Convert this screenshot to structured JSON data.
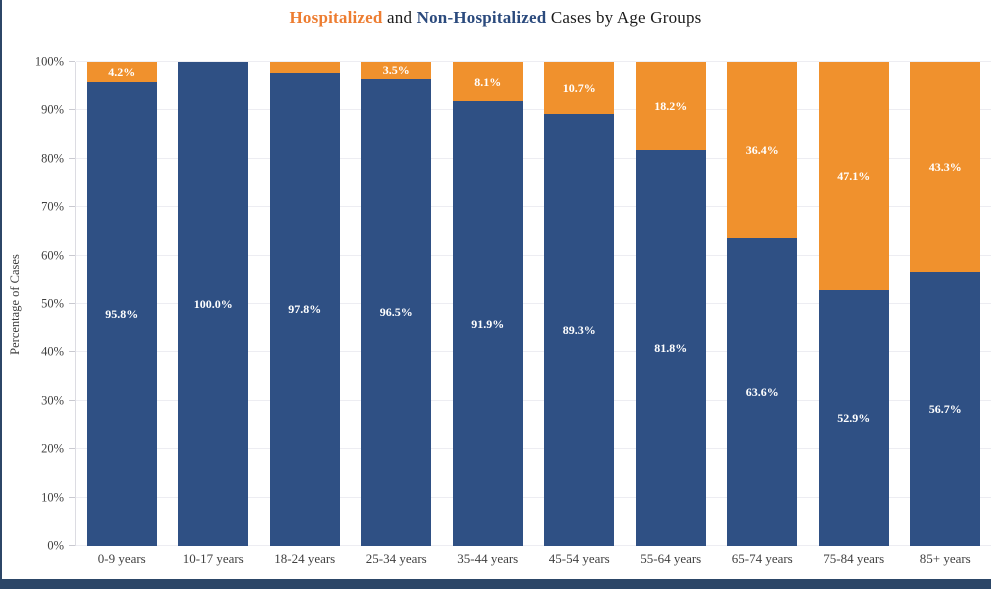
{
  "title": {
    "hospitalized": "Hospitalized",
    "and": " and ",
    "non_hospitalized": "Non-Hospitalized",
    "suffix": " Cases by Age Groups"
  },
  "colors": {
    "hospitalized": "#F0912D",
    "non_hospitalized": "#2F5084",
    "title_hospitalized": "#ED7D31",
    "title_non_hospitalized": "#2B4A7D",
    "grid": "#EDEDF2",
    "axis_line": "#DCDCE2",
    "tick_mark": "#C9C9D0",
    "tick_text": "#404040",
    "frame": "#2C4667",
    "value_label_text": "#FFFFFF"
  },
  "chart_data": {
    "type": "bar",
    "stacked": true,
    "title": "Hospitalized and Non-Hospitalized Cases by Age Groups",
    "xlabel": "",
    "ylabel": "Percentage of Cases",
    "ylim": [
      0,
      100
    ],
    "grid": true,
    "legend_position": "none (color-coded words in title act as legend)",
    "categories": [
      "0-9 years",
      "10-17 years",
      "18-24 years",
      "25-34 years",
      "35-44 years",
      "45-54 years",
      "55-64 years",
      "65-74 years",
      "75-84 years",
      "85+ years"
    ],
    "yticks": [
      "0%",
      "10%",
      "20%",
      "30%",
      "40%",
      "50%",
      "60%",
      "70%",
      "80%",
      "90%",
      "100%"
    ],
    "series": [
      {
        "name": "Non-Hospitalized",
        "color_key": "non_hospitalized",
        "values": [
          95.8,
          100.0,
          97.8,
          96.5,
          91.9,
          89.3,
          81.8,
          63.6,
          52.9,
          56.7
        ],
        "labels": [
          "95.8%",
          "100.0%",
          "97.8%",
          "96.5%",
          "91.9%",
          "89.3%",
          "81.8%",
          "63.6%",
          "52.9%",
          "56.7%"
        ]
      },
      {
        "name": "Hospitalized",
        "color_key": "hospitalized",
        "values": [
          4.2,
          0.0,
          2.2,
          3.5,
          8.1,
          10.7,
          18.2,
          36.4,
          47.1,
          43.3
        ],
        "labels": [
          "4.2%",
          "",
          "",
          "3.5%",
          "8.1%",
          "10.7%",
          "18.2%",
          "36.4%",
          "47.1%",
          "43.3%"
        ]
      }
    ]
  }
}
